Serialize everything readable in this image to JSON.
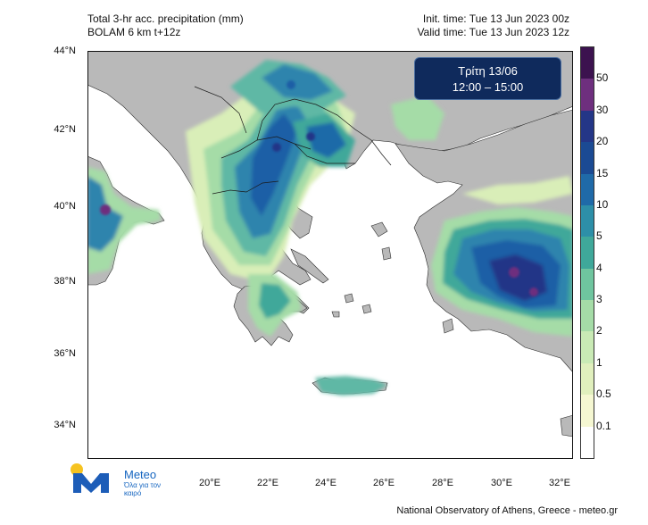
{
  "header": {
    "title_line1": "Total 3-hr acc. precipitation (mm)",
    "title_line2": "BOLAM 6 km t+12z",
    "init_time": "Init. time: Tue 13 Jun 2023 00z",
    "valid_time": "Valid time: Tue 13 Jun 2023 12z"
  },
  "badge": {
    "day": "Τρίτη 13/06",
    "hours": "12:00 – 15:00"
  },
  "axes": {
    "lat_labels": [
      "44°N",
      "42°N",
      "40°N",
      "38°N",
      "36°N",
      "34°N"
    ],
    "lon_labels": [
      "20°E",
      "22°E",
      "24°E",
      "26°E",
      "28°E",
      "30°E",
      "32°E"
    ]
  },
  "colorbar": {
    "labels": [
      "50",
      "30",
      "20",
      "15",
      "10",
      "5",
      "4",
      "3",
      "2",
      "1",
      "0.5",
      "0.1"
    ],
    "colors": [
      "#ffffff",
      "#f5f7d2",
      "#e0efbd",
      "#c9eab5",
      "#a5dca7",
      "#6fc59f",
      "#3fa89a",
      "#2d8fa8",
      "#1f6aa8",
      "#1b4a93",
      "#243687",
      "#6e2f7e",
      "#3c124f"
    ]
  },
  "logo": {
    "name": "Meteo",
    "tagline": "Όλα για τον καιρό"
  },
  "footer": {
    "credit": "National Observatory of Athens, Greece - meteo.gr"
  }
}
